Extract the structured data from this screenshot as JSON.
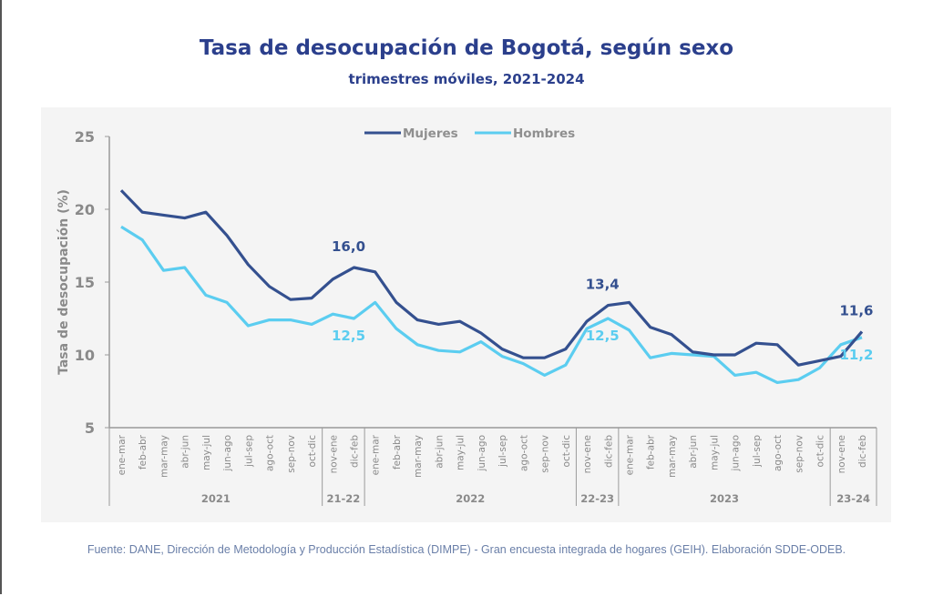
{
  "title": "Tasa de desocupación de Bogotá, según sexo",
  "subtitle": "trimestres móviles, 2021-2024",
  "source": "Fuente: DANE, Dirección de Metodología y Producción Estadística (DIMPE) - Gran encuesta integrada de hogares (GEIH). Elaboración SDDE-ODEB.",
  "colors": {
    "mujeres": "#34508f",
    "hombres": "#5bcdf0",
    "axis": "#9a9a9a",
    "text": "#8a8a8a"
  },
  "chart_data": {
    "type": "line",
    "title": "Tasa de desocupación de Bogotá, según sexo",
    "subtitle": "trimestres móviles, 2021-2024",
    "xlabel": "",
    "ylabel": "Tasa de desocupación (%)",
    "ylim": [
      5,
      25
    ],
    "yticks": [
      5,
      10,
      15,
      20,
      25
    ],
    "legend_position": "top-center",
    "grid": false,
    "categories": [
      "ene-mar",
      "feb-abr",
      "mar-may",
      "abr-jun",
      "may-jul",
      "jun-ago",
      "jul-sep",
      "ago-oct",
      "sep-nov",
      "oct-dic",
      "nov-ene",
      "dic-feb",
      "ene-mar",
      "feb-abr",
      "mar-may",
      "abr-jun",
      "may-jul",
      "jun-ago",
      "jul-sep",
      "ago-oct",
      "sep-nov",
      "oct-dic",
      "nov-ene",
      "dic-feb",
      "ene-mar",
      "feb-abr",
      "mar-may",
      "abr-jun",
      "may-jul",
      "jun-ago",
      "jul-sep",
      "ago-oct",
      "sep-nov",
      "oct-dic",
      "nov-ene",
      "dic-feb"
    ],
    "groups": [
      {
        "label": "2021",
        "count": 10
      },
      {
        "label": "21-22",
        "count": 2
      },
      {
        "label": "2022",
        "count": 10
      },
      {
        "label": "22-23",
        "count": 2
      },
      {
        "label": "2023",
        "count": 10
      },
      {
        "label": "23-24",
        "count": 2
      }
    ],
    "series": [
      {
        "name": "Mujeres",
        "key": "mujeres",
        "values": [
          21.3,
          19.8,
          19.6,
          19.4,
          19.8,
          18.2,
          16.2,
          14.7,
          13.8,
          13.9,
          15.2,
          16.0,
          15.7,
          13.6,
          12.4,
          12.1,
          12.3,
          11.5,
          10.4,
          9.8,
          9.8,
          10.4,
          12.3,
          13.4,
          13.6,
          11.9,
          11.4,
          10.2,
          10.0,
          10.0,
          10.8,
          10.7,
          9.3,
          9.6,
          9.9,
          11.6
        ]
      },
      {
        "name": "Hombres",
        "key": "hombres",
        "values": [
          18.8,
          17.9,
          15.8,
          16.0,
          14.1,
          13.6,
          12.0,
          12.4,
          12.4,
          12.1,
          12.8,
          12.5,
          13.6,
          11.8,
          10.7,
          10.3,
          10.2,
          10.9,
          9.9,
          9.4,
          8.6,
          9.3,
          11.8,
          12.5,
          11.7,
          9.8,
          10.1,
          10.0,
          9.9,
          8.6,
          8.8,
          8.1,
          8.3,
          9.1,
          10.7,
          11.2
        ]
      }
    ],
    "annotations": [
      {
        "series": "mujeres",
        "index": 11,
        "text": "16,0",
        "placement": "above"
      },
      {
        "series": "hombres",
        "index": 11,
        "text": "12,5",
        "placement": "below"
      },
      {
        "series": "mujeres",
        "index": 23,
        "text": "13,4",
        "placement": "above"
      },
      {
        "series": "hombres",
        "index": 23,
        "text": "12,5",
        "placement": "below"
      },
      {
        "series": "mujeres",
        "index": 35,
        "text": "11,6",
        "placement": "above"
      },
      {
        "series": "hombres",
        "index": 35,
        "text": "11,2",
        "placement": "below"
      }
    ]
  }
}
